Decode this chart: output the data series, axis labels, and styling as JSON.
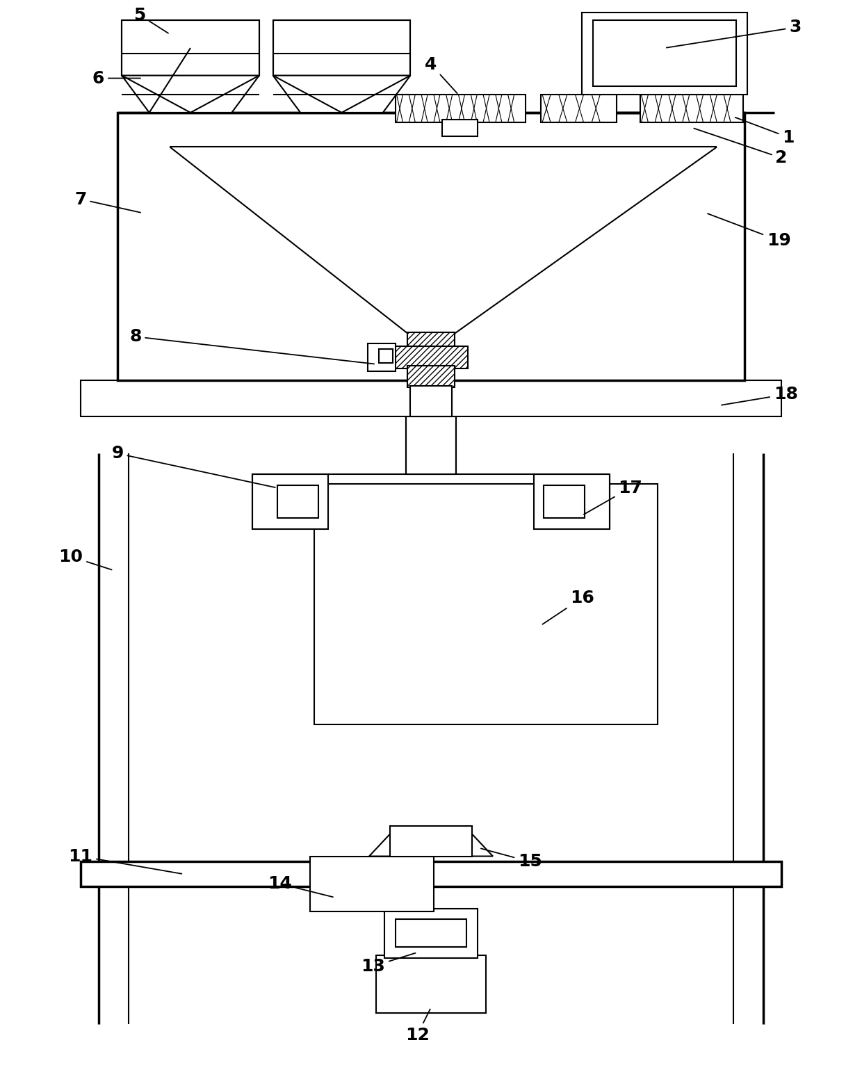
{
  "bg_color": "#ffffff",
  "lc": "#000000",
  "lw": 1.5,
  "tlw": 2.5,
  "fig_width": 12.4,
  "fig_height": 15.39
}
